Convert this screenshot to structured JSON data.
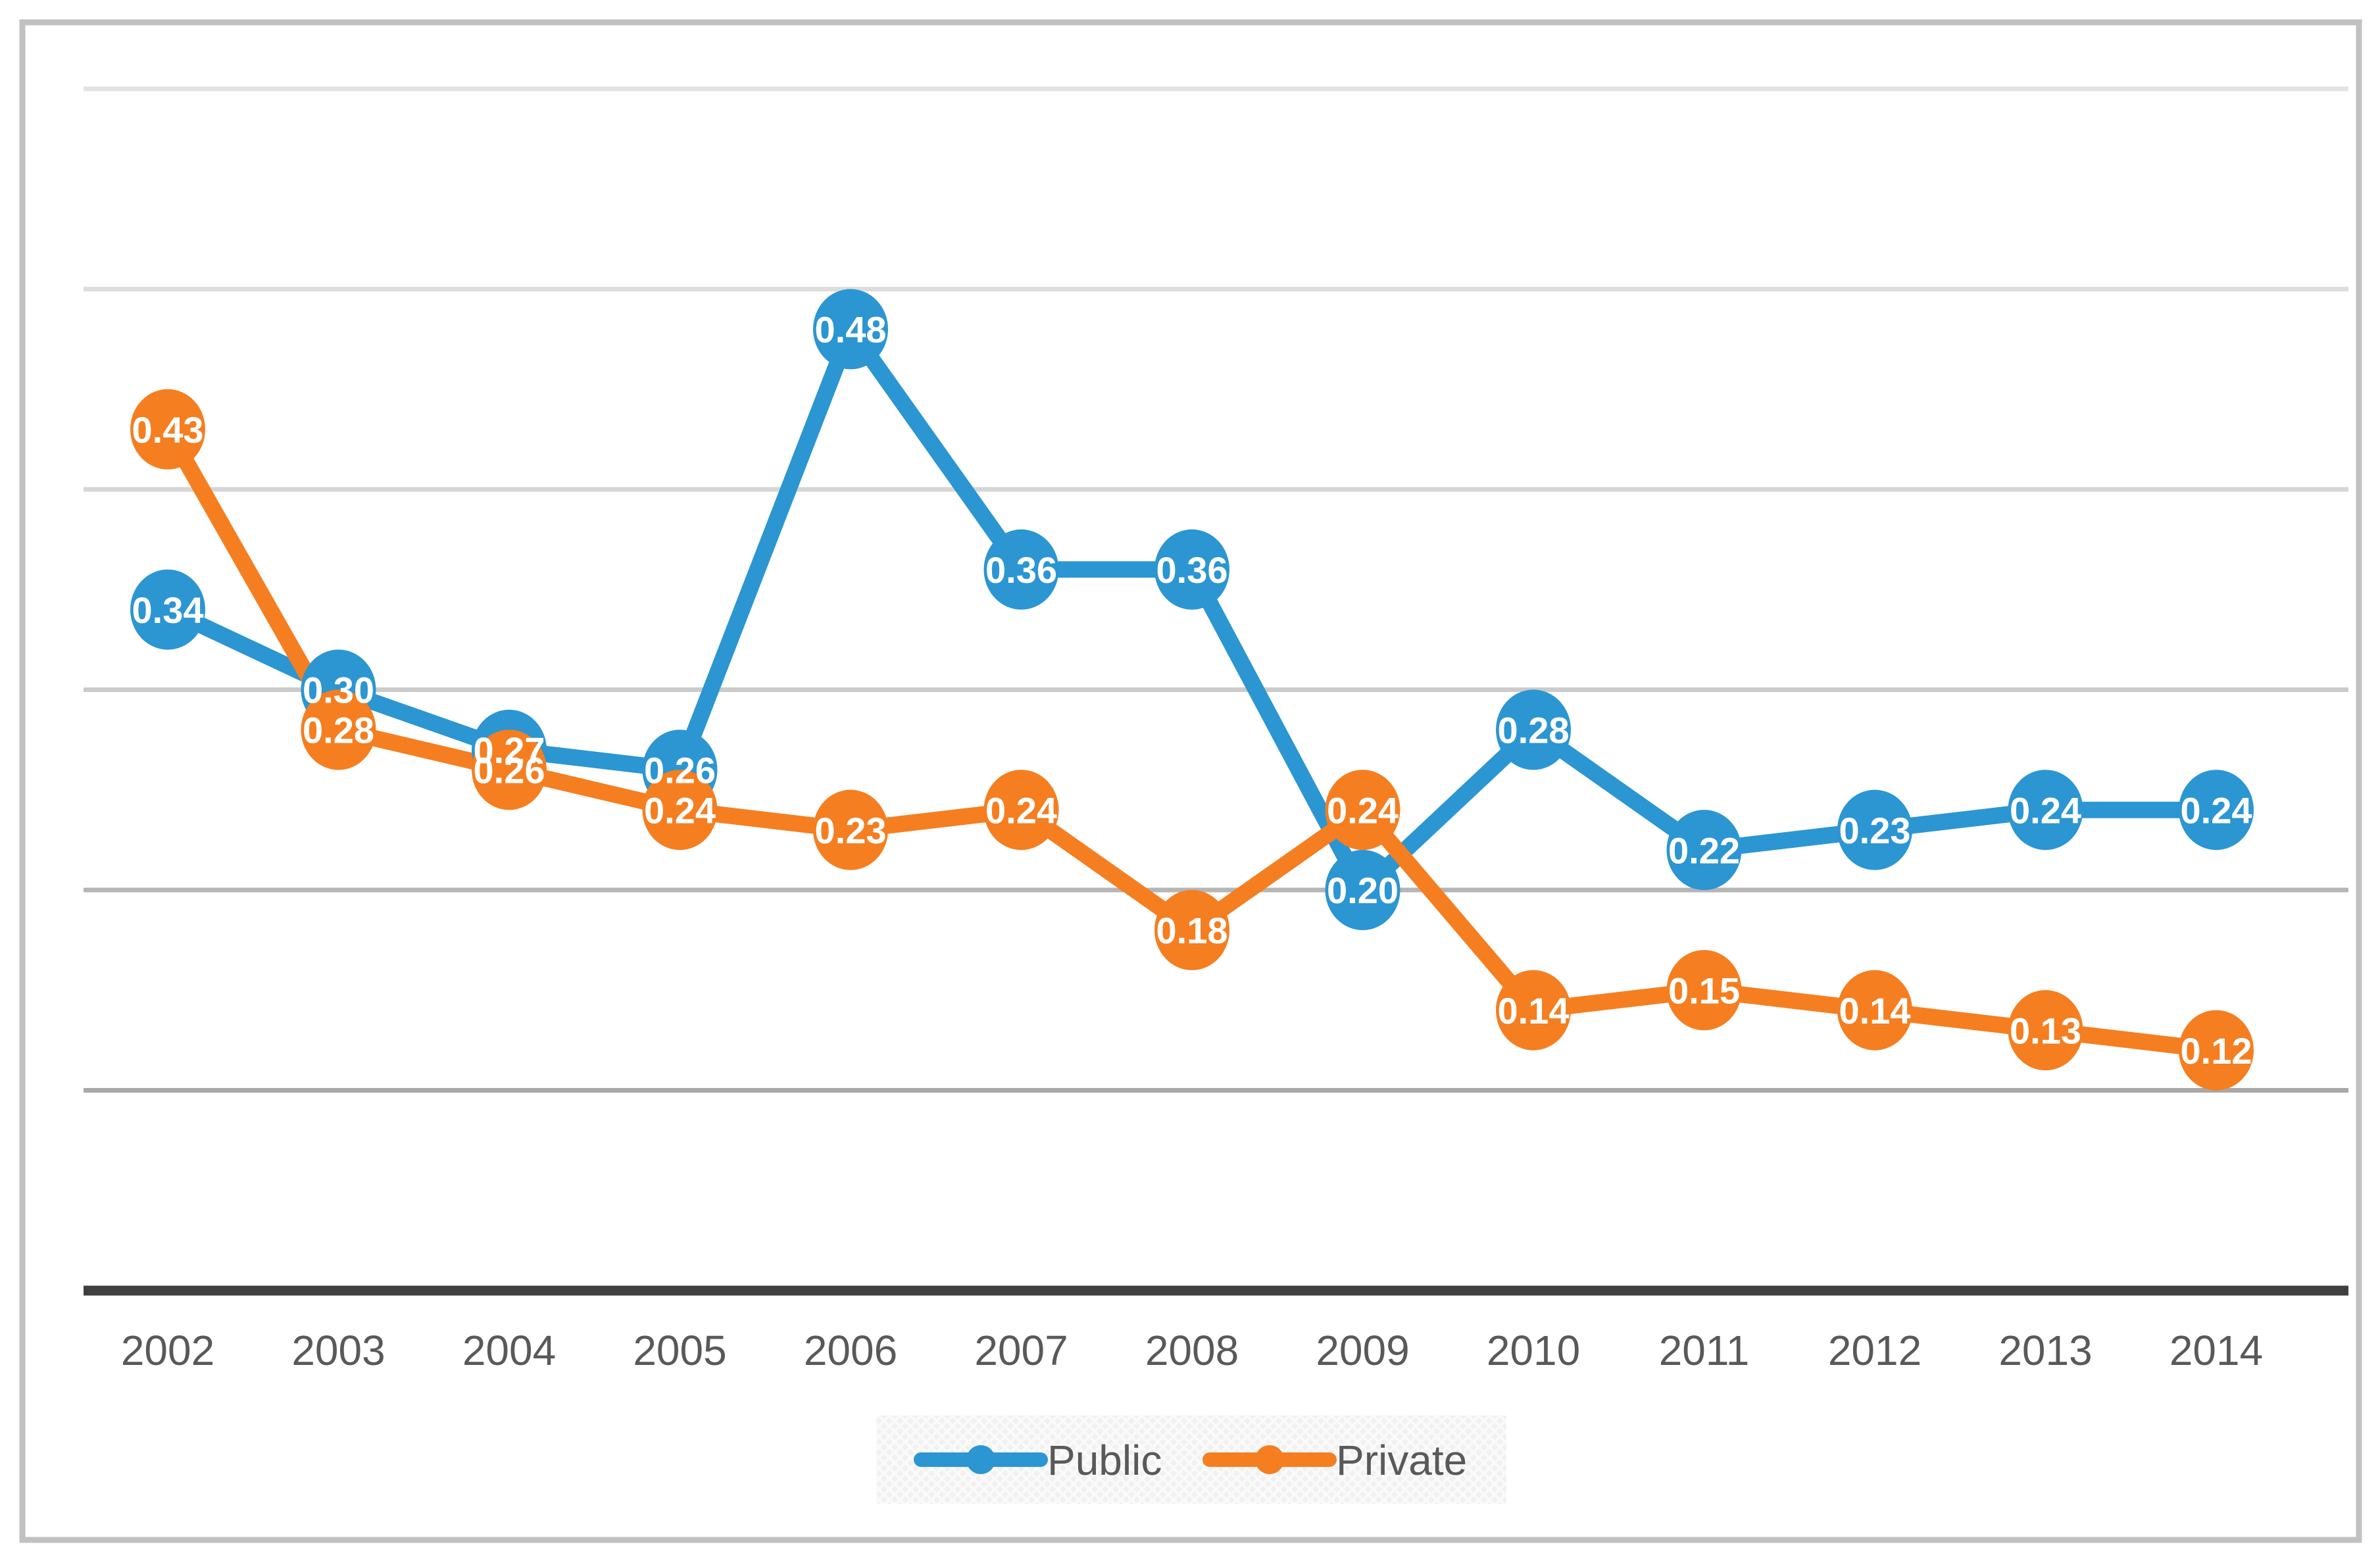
{
  "chart_data": {
    "type": "line",
    "categories": [
      "2002",
      "2003",
      "2004",
      "2005",
      "2006",
      "2007",
      "2008",
      "2009",
      "2010",
      "2011",
      "2012",
      "2013",
      "2014"
    ],
    "series": [
      {
        "name": "Public",
        "color": "#2b96d2",
        "values": [
          0.34,
          0.3,
          0.27,
          0.26,
          0.48,
          0.36,
          0.36,
          0.2,
          0.28,
          0.22,
          0.23,
          0.24,
          0.24
        ]
      },
      {
        "name": "Private",
        "color": "#f57e20",
        "values": [
          0.43,
          0.28,
          0.26,
          0.24,
          0.23,
          0.24,
          0.18,
          0.24,
          0.14,
          0.15,
          0.14,
          0.13,
          0.12
        ]
      }
    ],
    "title": "",
    "xlabel": "",
    "ylabel": "",
    "ylim": [
      0,
      0.6
    ],
    "grid_step": 0.1,
    "grid": "horizontal-only",
    "y_tick_labels_shown": false,
    "data_labels": true,
    "data_label_decimals": 2,
    "data_label_color": "#ffffff",
    "legend_position": "bottom-center",
    "axis_line_color": "#3f3f3f",
    "tick_label_color": "#595959",
    "frame_border_color": "#c1c1c1"
  }
}
